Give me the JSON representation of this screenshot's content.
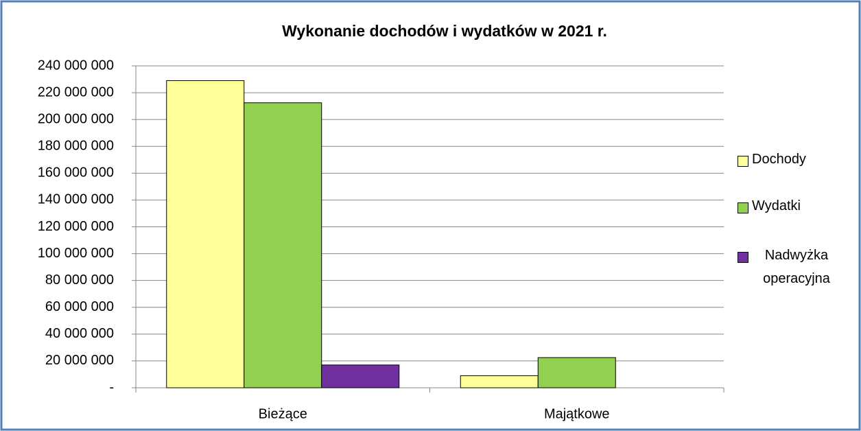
{
  "chart_data": {
    "type": "bar",
    "title": "Wykonanie dochodów i wydatków w 2021 r.",
    "categories": [
      "Bieżące",
      "Majątkowe"
    ],
    "series": [
      {
        "name": "Dochody",
        "color": "#ffff99",
        "values": [
          229000000,
          9000000
        ]
      },
      {
        "name": "Wydatki",
        "color": "#92d050",
        "values": [
          212500000,
          22500000
        ]
      },
      {
        "name": "Nadwyżka operacyjna",
        "color": "#7030a0",
        "values": [
          17000000,
          null
        ]
      }
    ],
    "ylim": [
      0,
      240000000
    ],
    "yticks": [
      {
        "value": 0,
        "label": "-"
      },
      {
        "value": 20000000,
        "label": "20 000 000"
      },
      {
        "value": 40000000,
        "label": "40 000 000"
      },
      {
        "value": 60000000,
        "label": "60 000 000"
      },
      {
        "value": 80000000,
        "label": "80 000 000"
      },
      {
        "value": 100000000,
        "label": "100 000 000"
      },
      {
        "value": 120000000,
        "label": "120 000 000"
      },
      {
        "value": 140000000,
        "label": "140 000 000"
      },
      {
        "value": 160000000,
        "label": "160 000 000"
      },
      {
        "value": 180000000,
        "label": "180 000 000"
      },
      {
        "value": 200000000,
        "label": "200 000 000"
      },
      {
        "value": 220000000,
        "label": "220 000 000"
      },
      {
        "value": 240000000,
        "label": "240 000 000"
      }
    ],
    "grid": true,
    "legend": "right"
  }
}
